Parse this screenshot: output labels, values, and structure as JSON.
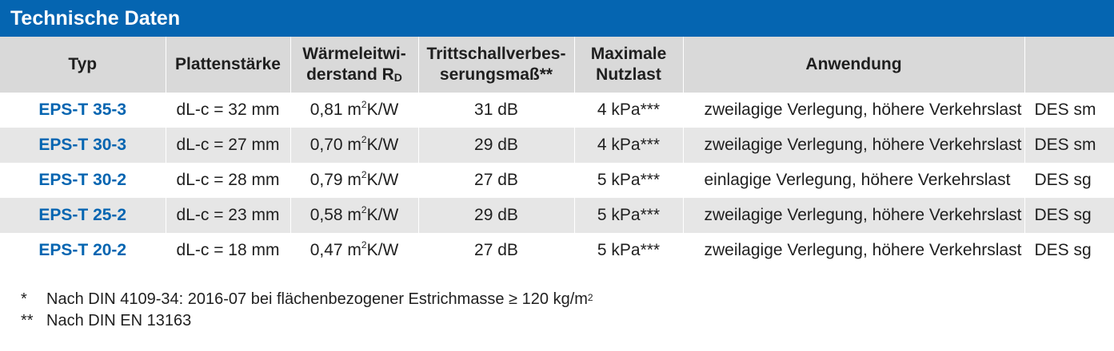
{
  "title": "Technische Daten",
  "headers": {
    "typ": "Typ",
    "plattenstaerke": "Plattenstärke",
    "waerme_line1": "Wärmeleitwi-",
    "waerme_line2": "derstand R",
    "waerme_sub": "D",
    "tritt_line1": "Trittschallverbes-",
    "tritt_line2": "serungsmaß**",
    "nutzlast_line1": "Maximale",
    "nutzlast_line2": "Nutzlast",
    "anwendung": "Anwendung",
    "extra": ""
  },
  "rows": [
    {
      "typ": "EPS-T 35-3",
      "staerke": "dL-c = 32 mm",
      "waerme_value": "0,81 m",
      "waerme_sup": "2",
      "waerme_unit": "K/W",
      "tritt": "31 dB",
      "nutzlast": "4 kPa***",
      "anwendung": "zweilagige Verlegung, höhere Verkehrslast",
      "des": "DES sm"
    },
    {
      "typ": "EPS-T 30-3",
      "staerke": "dL-c = 27 mm",
      "waerme_value": "0,70 m",
      "waerme_sup": "2",
      "waerme_unit": "K/W",
      "tritt": "29 dB",
      "nutzlast": "4 kPa***",
      "anwendung": "zweilagige Verlegung, höhere Verkehrslast",
      "des": "DES sm"
    },
    {
      "typ": "EPS-T 30-2",
      "staerke": "dL-c = 28 mm",
      "waerme_value": "0,79 m",
      "waerme_sup": "2",
      "waerme_unit": "K/W",
      "tritt": "27 dB",
      "nutzlast": "5 kPa***",
      "anwendung": "einlagige Verlegung, höhere Verkehrslast",
      "des": "DES sg"
    },
    {
      "typ": "EPS-T 25-2",
      "staerke": "dL-c = 23 mm",
      "waerme_value": "0,58 m",
      "waerme_sup": "2",
      "waerme_unit": "K/W",
      "tritt": "29 dB",
      "nutzlast": "5 kPa***",
      "anwendung": "zweilagige Verlegung, höhere Verkehrslast",
      "des": "DES sg"
    },
    {
      "typ": "EPS-T 20-2",
      "staerke": "dL-c = 18 mm",
      "waerme_value": "0,47 m",
      "waerme_sup": "2",
      "waerme_unit": "K/W",
      "tritt": "27 dB",
      "nutzlast": "5 kPa***",
      "anwendung": "zweilagige Verlegung, höhere Verkehrslast",
      "des": "DES sg"
    }
  ],
  "footnotes": [
    {
      "mark": "*",
      "text": "Nach DIN 4109-34: 2016-07 bei flächenbezogener Estrichmasse ≥ 120 kg/m",
      "sup": "2"
    },
    {
      "mark": "**",
      "text": "Nach DIN EN 13163",
      "sup": ""
    }
  ],
  "colors": {
    "brand_blue": "#0565b1",
    "header_grey": "#d9d9d9",
    "row_grey": "#e6e6e6"
  }
}
